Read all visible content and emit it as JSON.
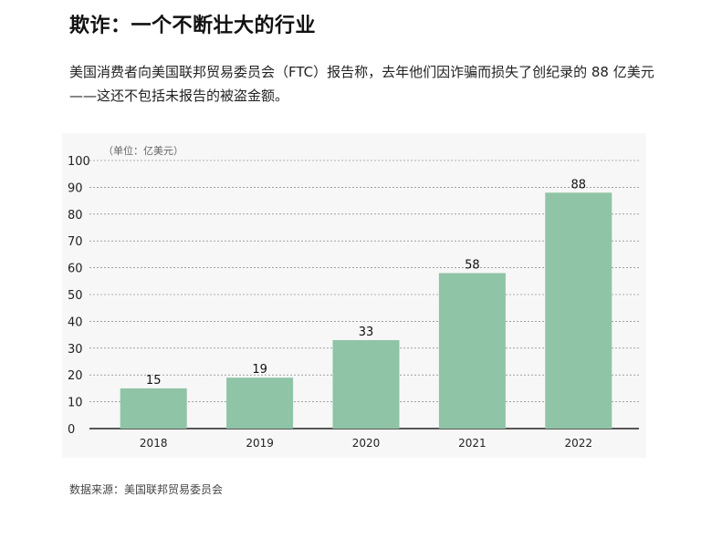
{
  "title": "欺诈：一个不断壮大的行业",
  "subtitle": "美国消费者向美国联邦贸易委员会（FTC）报告称，去年他们因诈骗而损失了创纪录的 88 亿美元——这还不包括未报告的被盗金额。",
  "source": "数据来源：美国联邦贸易委员会",
  "colors": {
    "bar": "#8fc4a6",
    "grid": "#333333",
    "axis": "#222222",
    "panel": "#f7f7f7"
  },
  "chart_data": {
    "type": "bar",
    "unit_label": "（单位：亿美元）",
    "categories": [
      "2018",
      "2019",
      "2020",
      "2021",
      "2022"
    ],
    "values": [
      15,
      19,
      33,
      58,
      88
    ],
    "value_labels": [
      "15",
      "19",
      "33",
      "58",
      "88"
    ],
    "ylim": [
      0,
      100
    ],
    "yticks": [
      0,
      10,
      20,
      30,
      40,
      50,
      60,
      70,
      80,
      90,
      100
    ],
    "grid": true,
    "legend": "none"
  }
}
